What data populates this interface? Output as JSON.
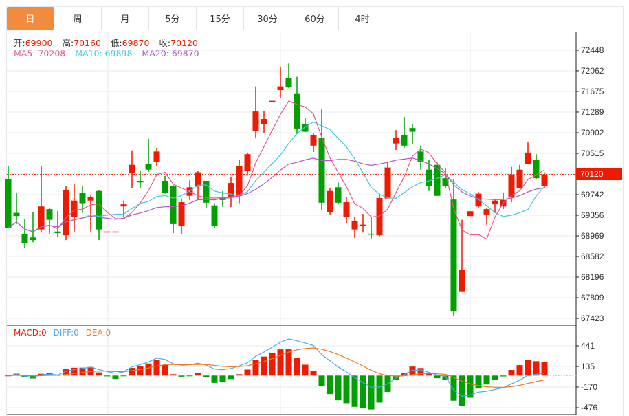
{
  "tabs": [
    {
      "label": "日",
      "active": true
    },
    {
      "label": "周"
    },
    {
      "label": "月"
    },
    {
      "label": "5分"
    },
    {
      "label": "15分"
    },
    {
      "label": "30分"
    },
    {
      "label": "60分"
    },
    {
      "label": "4时"
    }
  ],
  "ohlc_legend": {
    "open_label": "开:",
    "open": "69900",
    "high_label": "高:",
    "high": "70160",
    "low_label": "低:",
    "low": "69870",
    "close_label": "收:",
    "close": "70120"
  },
  "ma_legend": {
    "ma5": "MA5: 70208",
    "ma10": "MA10: 69898",
    "ma20": "MA20: 69870"
  },
  "macd_legend": {
    "macd": "MACD:0",
    "diff": "DIFF:0",
    "dea": "DEA:0"
  },
  "colors": {
    "up": "#f01a00",
    "down": "#00a000",
    "ma5": "#e8578a",
    "ma10": "#3ec8dc",
    "ma20": "#b455c8",
    "diff": "#4aa8f0",
    "dea": "#f07820",
    "accent": "#f28b3d"
  },
  "chart_data": {
    "type": "candlestick",
    "current_price": "70120",
    "price_axis": {
      "ticks": [
        "72448",
        "72062",
        "71675",
        "71289",
        "70902",
        "70515",
        "69742",
        "69356",
        "68969",
        "68582",
        "68196",
        "67809",
        "67423"
      ],
      "range": [
        67423,
        72448
      ],
      "step": 386.5
    },
    "macd_axis": {
      "ticks": [
        "441",
        "135",
        "-170",
        "-476"
      ],
      "range": [
        -476,
        441
      ]
    },
    "candles_ohlc": [
      [
        70030,
        70270,
        69110,
        69120
      ],
      [
        69400,
        69780,
        69190,
        69340
      ],
      [
        69000,
        69280,
        68740,
        68830
      ],
      [
        68940,
        69410,
        68850,
        68890
      ],
      [
        69090,
        70280,
        69030,
        69520
      ],
      [
        69470,
        69500,
        69010,
        69270
      ],
      [
        69050,
        69430,
        68940,
        69020
      ],
      [
        68980,
        69900,
        68890,
        69830
      ],
      [
        69320,
        69940,
        69050,
        69630
      ],
      [
        69780,
        69910,
        69400,
        69580
      ],
      [
        69630,
        69740,
        69050,
        69700
      ],
      [
        69810,
        69820,
        68890,
        69090
      ],
      [
        69050,
        69050,
        69050,
        69050
      ],
      [
        69050,
        69050,
        69050,
        69050
      ],
      [
        69520,
        69630,
        69320,
        69560
      ],
      [
        70140,
        70570,
        69860,
        70300
      ],
      [
        70000,
        70190,
        69870,
        69970
      ],
      [
        70310,
        70790,
        70170,
        70210
      ],
      [
        70360,
        70620,
        70270,
        70550
      ],
      [
        70000,
        70090,
        69760,
        69770
      ],
      [
        69900,
        69920,
        69020,
        69190
      ],
      [
        69150,
        69670,
        69000,
        69600
      ],
      [
        69720,
        70010,
        69640,
        69880
      ],
      [
        69900,
        70190,
        69650,
        70160
      ],
      [
        70000,
        70000,
        69490,
        69590
      ],
      [
        69540,
        69580,
        69120,
        69160
      ],
      [
        69680,
        69810,
        69510,
        69640
      ],
      [
        69690,
        70080,
        69510,
        69960
      ],
      [
        69720,
        70390,
        69580,
        70280
      ],
      [
        70190,
        70530,
        70100,
        70500
      ],
      [
        70930,
        71770,
        70810,
        71300
      ],
      [
        71060,
        71310,
        70900,
        71160
      ],
      [
        71500,
        71500,
        71500,
        71500
      ],
      [
        71700,
        72140,
        71560,
        71770
      ],
      [
        71930,
        72200,
        71740,
        71750
      ],
      [
        71640,
        71950,
        70880,
        70980
      ],
      [
        71060,
        71170,
        70910,
        70920
      ],
      [
        70660,
        70900,
        70540,
        70860
      ],
      [
        70810,
        71340,
        69460,
        69590
      ],
      [
        69410,
        69870,
        69370,
        69810
      ],
      [
        69880,
        69970,
        69560,
        69590
      ],
      [
        69330,
        69690,
        69200,
        69600
      ],
      [
        69090,
        69330,
        68930,
        69250
      ],
      [
        69150,
        69380,
        69030,
        69180
      ],
      [
        69010,
        69320,
        68920,
        68990
      ],
      [
        68980,
        69760,
        68960,
        69680
      ],
      [
        69670,
        70350,
        69670,
        70250
      ],
      [
        70700,
        70950,
        70580,
        70800
      ],
      [
        70850,
        71200,
        70620,
        70660
      ],
      [
        70990,
        71060,
        70680,
        70920
      ],
      [
        70550,
        70660,
        70210,
        70350
      ],
      [
        70210,
        70400,
        69810,
        69900
      ],
      [
        70300,
        70340,
        69720,
        69720
      ],
      [
        70050,
        70230,
        69860,
        69900
      ],
      [
        69650,
        70040,
        67460,
        67550
      ],
      [
        67930,
        69270,
        67930,
        68330
      ],
      [
        69340,
        69430,
        69340,
        69430
      ],
      [
        69520,
        69790,
        69500,
        69760
      ],
      [
        69370,
        69490,
        69180,
        69470
      ],
      [
        69560,
        69650,
        69410,
        69630
      ],
      [
        69520,
        69780,
        69470,
        69640
      ],
      [
        69690,
        70260,
        69600,
        70120
      ],
      [
        69870,
        70300,
        69870,
        70210
      ],
      [
        70320,
        70720,
        70320,
        70530
      ],
      [
        70390,
        70500,
        70030,
        70050
      ],
      [
        69900,
        70160,
        69870,
        70120
      ]
    ],
    "ma_periods": [
      5,
      10,
      20
    ],
    "macd_params": [
      12,
      26,
      9
    ]
  }
}
